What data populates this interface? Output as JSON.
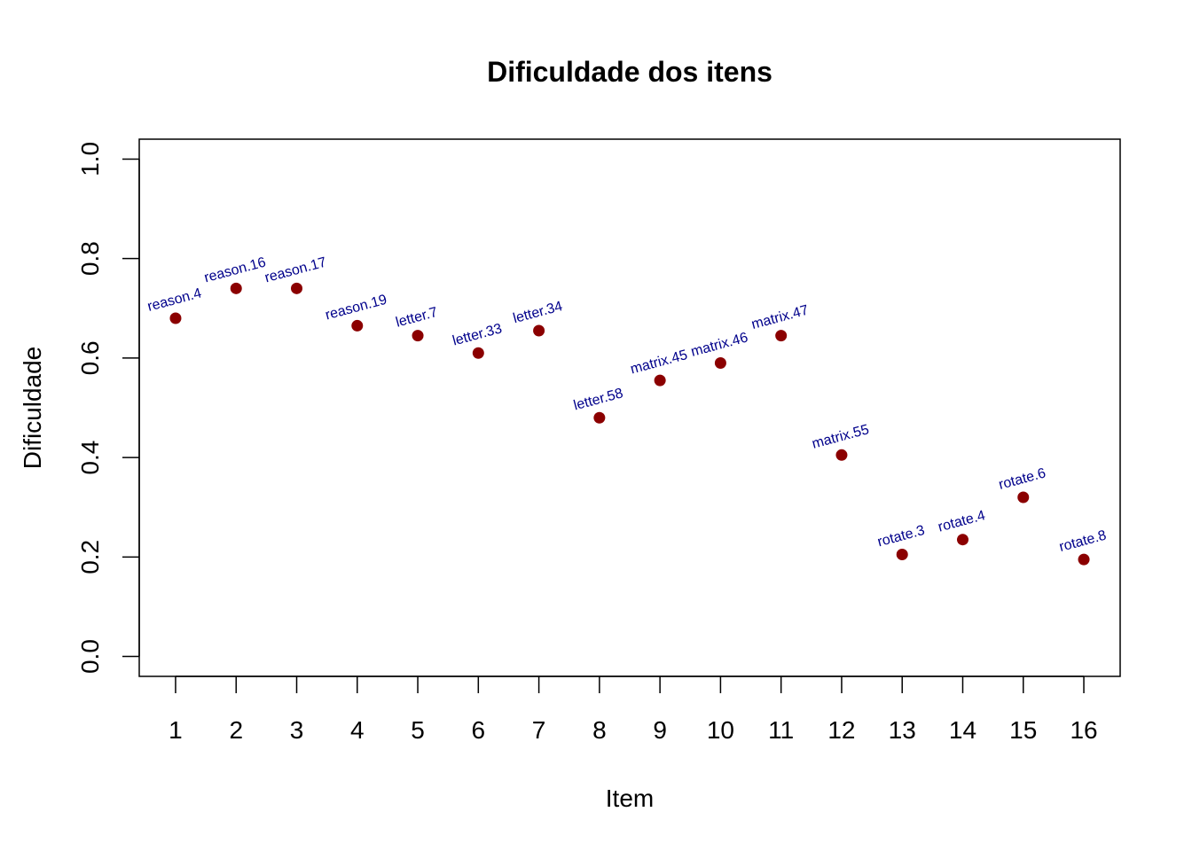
{
  "chart_data": {
    "type": "scatter",
    "title": "Dificuldade dos itens",
    "xlabel": "Item",
    "ylabel": "Dificuldade",
    "x": [
      1,
      2,
      3,
      4,
      5,
      6,
      7,
      8,
      9,
      10,
      11,
      12,
      13,
      14,
      15,
      16
    ],
    "y": [
      0.68,
      0.74,
      0.74,
      0.665,
      0.645,
      0.61,
      0.655,
      0.48,
      0.555,
      0.59,
      0.645,
      0.405,
      0.205,
      0.235,
      0.32,
      0.195
    ],
    "point_labels": [
      "reason.4",
      "reason.16",
      "reason.17",
      "reason.19",
      "letter.7",
      "letter.33",
      "letter.34",
      "letter.58",
      "matrix.45",
      "matrix.46",
      "matrix.47",
      "matrix.55",
      "rotate.3",
      "rotate.4",
      "rotate.6",
      "rotate.8"
    ],
    "x_ticks": [
      "1",
      "2",
      "3",
      "4",
      "5",
      "6",
      "7",
      "8",
      "9",
      "10",
      "11",
      "12",
      "13",
      "14",
      "15",
      "16"
    ],
    "y_ticks": [
      "0.0",
      "0.2",
      "0.4",
      "0.6",
      "0.8",
      "1.0"
    ],
    "xlim": [
      0.4,
      16.6
    ],
    "ylim": [
      -0.04,
      1.04
    ],
    "grid": false,
    "point_color": "#8B0000",
    "label_color": "#00008B"
  }
}
